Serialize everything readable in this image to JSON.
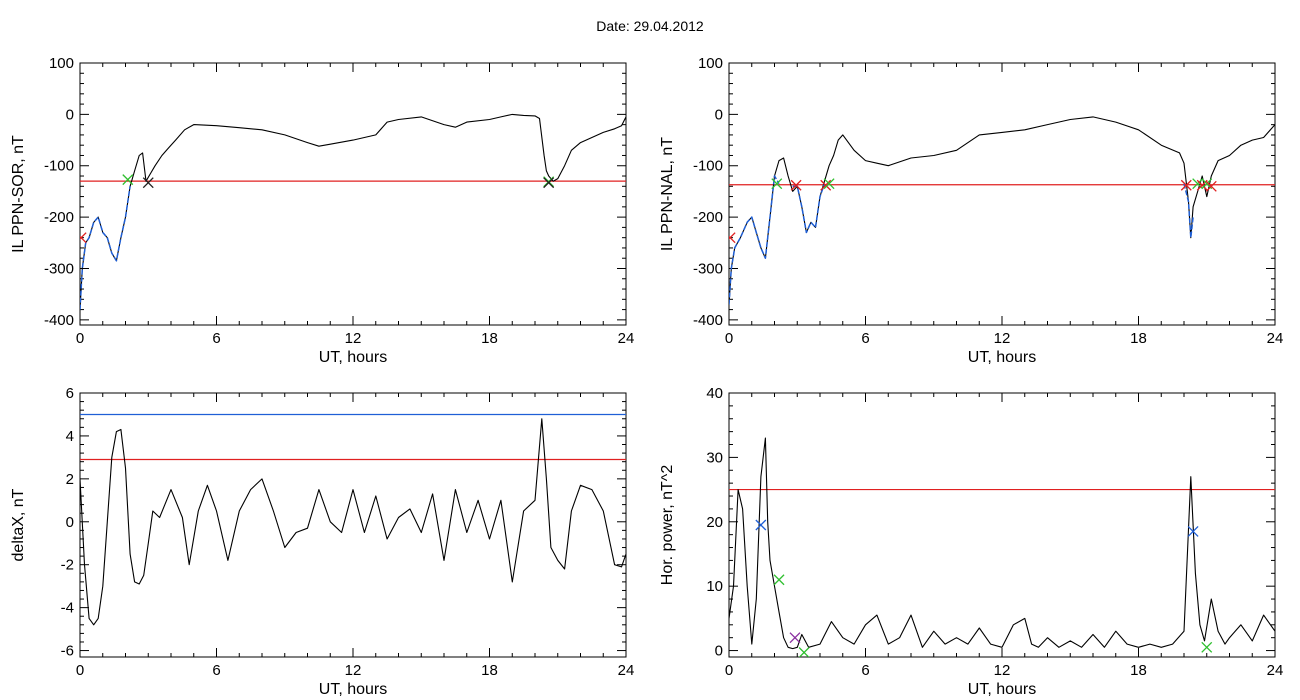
{
  "header": {
    "title": "Date:  29.04.2012"
  },
  "chart_data": [
    {
      "id": "p1",
      "type": "line",
      "xlabel": "UT, hours",
      "ylabel": "IL PPN-SOR, nT",
      "xlim": [
        0,
        24
      ],
      "ylim": [
        -410,
        100
      ],
      "xticks": [
        0,
        6,
        12,
        18,
        24
      ],
      "yticks": [
        -400,
        -300,
        -200,
        -100,
        0,
        100
      ],
      "grid": false,
      "series": [
        {
          "color": "#000000",
          "x": [
            0,
            0.1,
            0.25,
            0.4,
            0.6,
            0.8,
            1.0,
            1.2,
            1.4,
            1.6,
            1.8,
            2.0,
            2.2,
            2.4,
            2.6,
            2.75,
            2.9,
            3.1,
            3.3,
            3.6,
            3.9,
            4.2,
            4.6,
            5.0,
            6,
            7,
            8,
            9,
            10,
            10.5,
            11,
            12,
            12.5,
            13,
            13.5,
            14,
            15,
            16,
            16.5,
            17,
            18,
            18.5,
            19,
            19.5,
            20,
            20.2,
            20.4,
            20.5,
            20.6,
            20.8,
            21.0,
            21.3,
            21.6,
            22.0,
            22.5,
            23.0,
            23.5,
            23.8,
            24
          ],
          "y": [
            -380,
            -300,
            -250,
            -240,
            -210,
            -200,
            -230,
            -240,
            -270,
            -285,
            -240,
            -200,
            -140,
            -110,
            -80,
            -75,
            -130,
            -115,
            -100,
            -80,
            -65,
            -50,
            -30,
            -20,
            -22,
            -26,
            -30,
            -40,
            -55,
            -62,
            -58,
            -50,
            -45,
            -40,
            -15,
            -10,
            -5,
            -20,
            -25,
            -15,
            -10,
            -5,
            0,
            -2,
            -3,
            -8,
            -80,
            -110,
            -120,
            -130,
            -125,
            -100,
            -70,
            -55,
            -45,
            -35,
            -28,
            -22,
            -5
          ]
        },
        {
          "color": "#1f5fd6",
          "style": "dashed",
          "x": [
            0,
            0.1,
            0.25,
            0.4,
            0.6,
            0.8,
            1.0,
            1.2,
            1.4,
            1.6,
            1.8,
            2.0,
            2.2
          ],
          "y": [
            -380,
            -300,
            -250,
            -240,
            -210,
            -200,
            -230,
            -240,
            -270,
            -285,
            -240,
            -200,
            -140
          ]
        }
      ],
      "hlines": [
        {
          "y": -130,
          "color": "#e02020"
        }
      ],
      "markers": [
        {
          "x": 2.1,
          "y": -127,
          "color": "#2fbf2f"
        },
        {
          "x": 3.0,
          "y": -133,
          "color": "#202020"
        },
        {
          "x": 20.6,
          "y": -131,
          "color": "#2fbf2f"
        },
        {
          "x": 20.6,
          "y": -133,
          "color": "#202020"
        },
        {
          "x": 0.05,
          "y": -240,
          "color": "#e02020"
        }
      ]
    },
    {
      "id": "p2",
      "type": "line",
      "xlabel": "UT, hours",
      "ylabel": "IL PPN-NAL, nT",
      "xlim": [
        0,
        24
      ],
      "ylim": [
        -410,
        100
      ],
      "xticks": [
        0,
        6,
        12,
        18,
        24
      ],
      "yticks": [
        -400,
        -300,
        -200,
        -100,
        0,
        100
      ],
      "grid": false,
      "series": [
        {
          "color": "#000000",
          "x": [
            0,
            0.1,
            0.25,
            0.5,
            0.8,
            1.0,
            1.2,
            1.4,
            1.6,
            1.8,
            2.0,
            2.2,
            2.4,
            2.6,
            2.8,
            3.0,
            3.2,
            3.4,
            3.6,
            3.8,
            4.0,
            4.2,
            4.4,
            4.6,
            4.8,
            5.0,
            5.5,
            6.0,
            6.5,
            7.0,
            8.0,
            9.0,
            10.0,
            11.0,
            12.0,
            13.0,
            14.0,
            15.0,
            16.0,
            17.0,
            18.0,
            19.0,
            19.8,
            20.0,
            20.2,
            20.3,
            20.4,
            20.6,
            20.8,
            21.0,
            21.2,
            21.5,
            22.0,
            22.5,
            23.0,
            23.5,
            24
          ],
          "y": [
            -370,
            -300,
            -260,
            -240,
            -210,
            -200,
            -230,
            -260,
            -280,
            -200,
            -120,
            -90,
            -85,
            -120,
            -150,
            -140,
            -180,
            -230,
            -210,
            -220,
            -160,
            -130,
            -100,
            -80,
            -50,
            -40,
            -70,
            -90,
            -95,
            -100,
            -85,
            -80,
            -70,
            -40,
            -35,
            -30,
            -20,
            -10,
            -5,
            -15,
            -30,
            -60,
            -75,
            -95,
            -170,
            -240,
            -180,
            -150,
            -120,
            -160,
            -120,
            -90,
            -80,
            -60,
            -50,
            -45,
            -20
          ]
        },
        {
          "color": "#1f5fd6",
          "style": "dashed",
          "x": [
            0,
            0.1,
            0.25,
            0.5,
            0.8,
            1.0,
            1.2,
            1.4,
            1.6,
            1.8,
            2.0,
            2.2
          ],
          "y": [
            -370,
            -300,
            -260,
            -240,
            -210,
            -200,
            -230,
            -260,
            -280,
            -200,
            -120,
            -135
          ]
        },
        {
          "color": "#1f5fd6",
          "style": "dashed",
          "x": [
            2.8,
            3.0,
            3.2,
            3.4,
            3.6,
            3.8,
            4.0,
            4.2
          ],
          "y": [
            -140,
            -140,
            -180,
            -230,
            -210,
            -220,
            -160,
            -135
          ]
        },
        {
          "color": "#1f5fd6",
          "style": "dashed",
          "x": [
            20.0,
            20.2,
            20.3,
            20.4
          ],
          "y": [
            -135,
            -170,
            -240,
            -200
          ]
        }
      ],
      "hlines": [
        {
          "y": -137,
          "color": "#e02020"
        }
      ],
      "markers": [
        {
          "x": 2.1,
          "y": -135,
          "color": "#2fbf2f"
        },
        {
          "x": 2.95,
          "y": -138,
          "color": "#e02020"
        },
        {
          "x": 4.25,
          "y": -138,
          "color": "#e02020"
        },
        {
          "x": 4.4,
          "y": -135,
          "color": "#2fbf2f"
        },
        {
          "x": 20.1,
          "y": -138,
          "color": "#e02020"
        },
        {
          "x": 20.6,
          "y": -135,
          "color": "#2fbf2f"
        },
        {
          "x": 20.8,
          "y": -138,
          "color": "#e02020"
        },
        {
          "x": 21.0,
          "y": -135,
          "color": "#2fbf2f"
        },
        {
          "x": 21.2,
          "y": -140,
          "color": "#e02020"
        },
        {
          "x": 0.05,
          "y": -240,
          "color": "#e02020"
        }
      ]
    },
    {
      "id": "p3",
      "type": "line",
      "xlabel": "UT, hours",
      "ylabel": "deltaX, nT",
      "xlim": [
        0,
        24
      ],
      "ylim": [
        -6.3,
        6
      ],
      "xticks": [
        0,
        6,
        12,
        18,
        24
      ],
      "yticks": [
        -6,
        -4,
        -2,
        0,
        2,
        4,
        6
      ],
      "grid": false,
      "series": [
        {
          "color": "#000000",
          "x": [
            0,
            0.2,
            0.4,
            0.6,
            0.8,
            1.0,
            1.2,
            1.4,
            1.6,
            1.8,
            2.0,
            2.2,
            2.4,
            2.6,
            2.8,
            3.0,
            3.2,
            3.5,
            4.0,
            4.5,
            4.8,
            5.2,
            5.6,
            6.0,
            6.5,
            7.0,
            7.5,
            8.0,
            8.5,
            9.0,
            9.5,
            10.0,
            10.5,
            11.0,
            11.5,
            12.0,
            12.5,
            13.0,
            13.5,
            14.0,
            14.5,
            15.0,
            15.5,
            16.0,
            16.5,
            17.0,
            17.5,
            18.0,
            18.5,
            19.0,
            19.5,
            20.0,
            20.3,
            20.5,
            20.7,
            21.0,
            21.3,
            21.6,
            22.0,
            22.5,
            23.0,
            23.5,
            23.8,
            24
          ],
          "y": [
            2.0,
            -2.0,
            -4.5,
            -4.8,
            -4.5,
            -3.0,
            0.0,
            3.0,
            4.2,
            4.3,
            2.5,
            -1.5,
            -2.8,
            -2.9,
            -2.5,
            -1.0,
            0.5,
            0.2,
            1.5,
            0.2,
            -2.0,
            0.5,
            1.7,
            0.5,
            -1.8,
            0.5,
            1.5,
            2.0,
            0.5,
            -1.2,
            -0.5,
            -0.3,
            1.5,
            0.0,
            -0.5,
            1.5,
            -0.5,
            1.2,
            -0.8,
            0.2,
            0.6,
            -0.5,
            1.3,
            -1.8,
            1.5,
            -0.5,
            1.0,
            -0.8,
            1.0,
            -2.8,
            0.5,
            1.0,
            4.8,
            2.0,
            -1.2,
            -1.8,
            -2.2,
            0.5,
            1.7,
            1.5,
            0.5,
            -2.0,
            -2.1,
            -1.5
          ]
        }
      ],
      "hlines": [
        {
          "y": 5.0,
          "color": "#1f5fd6"
        },
        {
          "y": 2.9,
          "color": "#e02020"
        }
      ],
      "markers": []
    },
    {
      "id": "p4",
      "type": "line",
      "xlabel": "UT, hours",
      "ylabel": "Hor. power, nT^2",
      "xlim": [
        0,
        24
      ],
      "ylim": [
        -1,
        40
      ],
      "xticks": [
        0,
        6,
        12,
        18,
        24
      ],
      "yticks": [
        0,
        10,
        20,
        30,
        40
      ],
      "grid": false,
      "series": [
        {
          "color": "#000000",
          "x": [
            0,
            0.2,
            0.4,
            0.6,
            0.8,
            1.0,
            1.2,
            1.4,
            1.6,
            1.7,
            1.8,
            2.0,
            2.2,
            2.4,
            2.6,
            2.8,
            3.0,
            3.2,
            3.5,
            4.0,
            4.5,
            5.0,
            5.5,
            6.0,
            6.5,
            7.0,
            7.5,
            8.0,
            8.5,
            9.0,
            9.5,
            10.0,
            10.5,
            11.0,
            11.5,
            12.0,
            12.5,
            13.0,
            13.3,
            13.6,
            14.0,
            14.5,
            15.0,
            15.5,
            16.0,
            16.5,
            17.0,
            17.5,
            18.0,
            18.5,
            19.0,
            19.5,
            20.0,
            20.3,
            20.5,
            20.7,
            20.9,
            21.2,
            21.5,
            21.8,
            22.0,
            22.5,
            23.0,
            23.5,
            24
          ],
          "y": [
            5,
            10,
            25,
            22,
            10,
            1,
            8,
            27,
            33,
            20,
            14,
            10,
            6,
            2,
            0.5,
            0.3,
            0.5,
            2.5,
            0.5,
            1.0,
            4.5,
            2.0,
            1.0,
            4.0,
            5.5,
            1.0,
            2.0,
            5.5,
            0.5,
            3.0,
            1.0,
            2.0,
            1.0,
            3.5,
            1.0,
            0.5,
            4.0,
            5.0,
            1.0,
            0.5,
            2.0,
            0.5,
            1.5,
            0.5,
            2.5,
            0.5,
            3.0,
            1.0,
            0.5,
            1.0,
            0.5,
            1.0,
            3.0,
            27,
            12,
            4,
            1.5,
            8,
            3.0,
            1.0,
            2.0,
            4.0,
            1.5,
            5.5,
            3.0
          ]
        }
      ],
      "hlines": [
        {
          "y": 25,
          "color": "#e02020"
        }
      ],
      "markers": [
        {
          "x": 1.4,
          "y": 19.5,
          "color": "#1f5fd6"
        },
        {
          "x": 2.2,
          "y": 11,
          "color": "#2fbf2f"
        },
        {
          "x": 2.9,
          "y": 2,
          "color": "#8a2fa0"
        },
        {
          "x": 3.3,
          "y": -0.3,
          "color": "#2fbf2f"
        },
        {
          "x": 20.4,
          "y": 18.5,
          "color": "#1f5fd6"
        },
        {
          "x": 21.0,
          "y": 0.5,
          "color": "#2fbf2f"
        }
      ]
    }
  ]
}
